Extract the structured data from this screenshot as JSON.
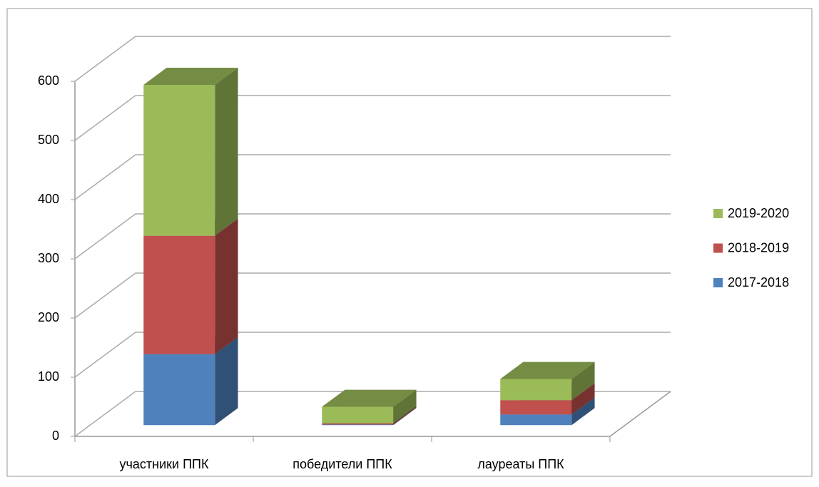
{
  "chart_data": {
    "type": "bar3d_stacked",
    "categories": [
      "участники ППК",
      "победители ППК",
      "лауреаты ППК"
    ],
    "series": [
      {
        "name": "2017-2018",
        "color": "#4f81bd",
        "values": [
          120,
          1,
          18
        ]
      },
      {
        "name": "2018-2019",
        "color": "#c0504d",
        "values": [
          200,
          2,
          24
        ]
      },
      {
        "name": "2019-2020",
        "color": "#9bbb59",
        "values": [
          255,
          28,
          36
        ]
      }
    ],
    "ylim": [
      0,
      600
    ],
    "yticks": [
      0,
      100,
      200,
      300,
      400,
      500,
      600
    ],
    "grid": true,
    "legend": "right"
  }
}
